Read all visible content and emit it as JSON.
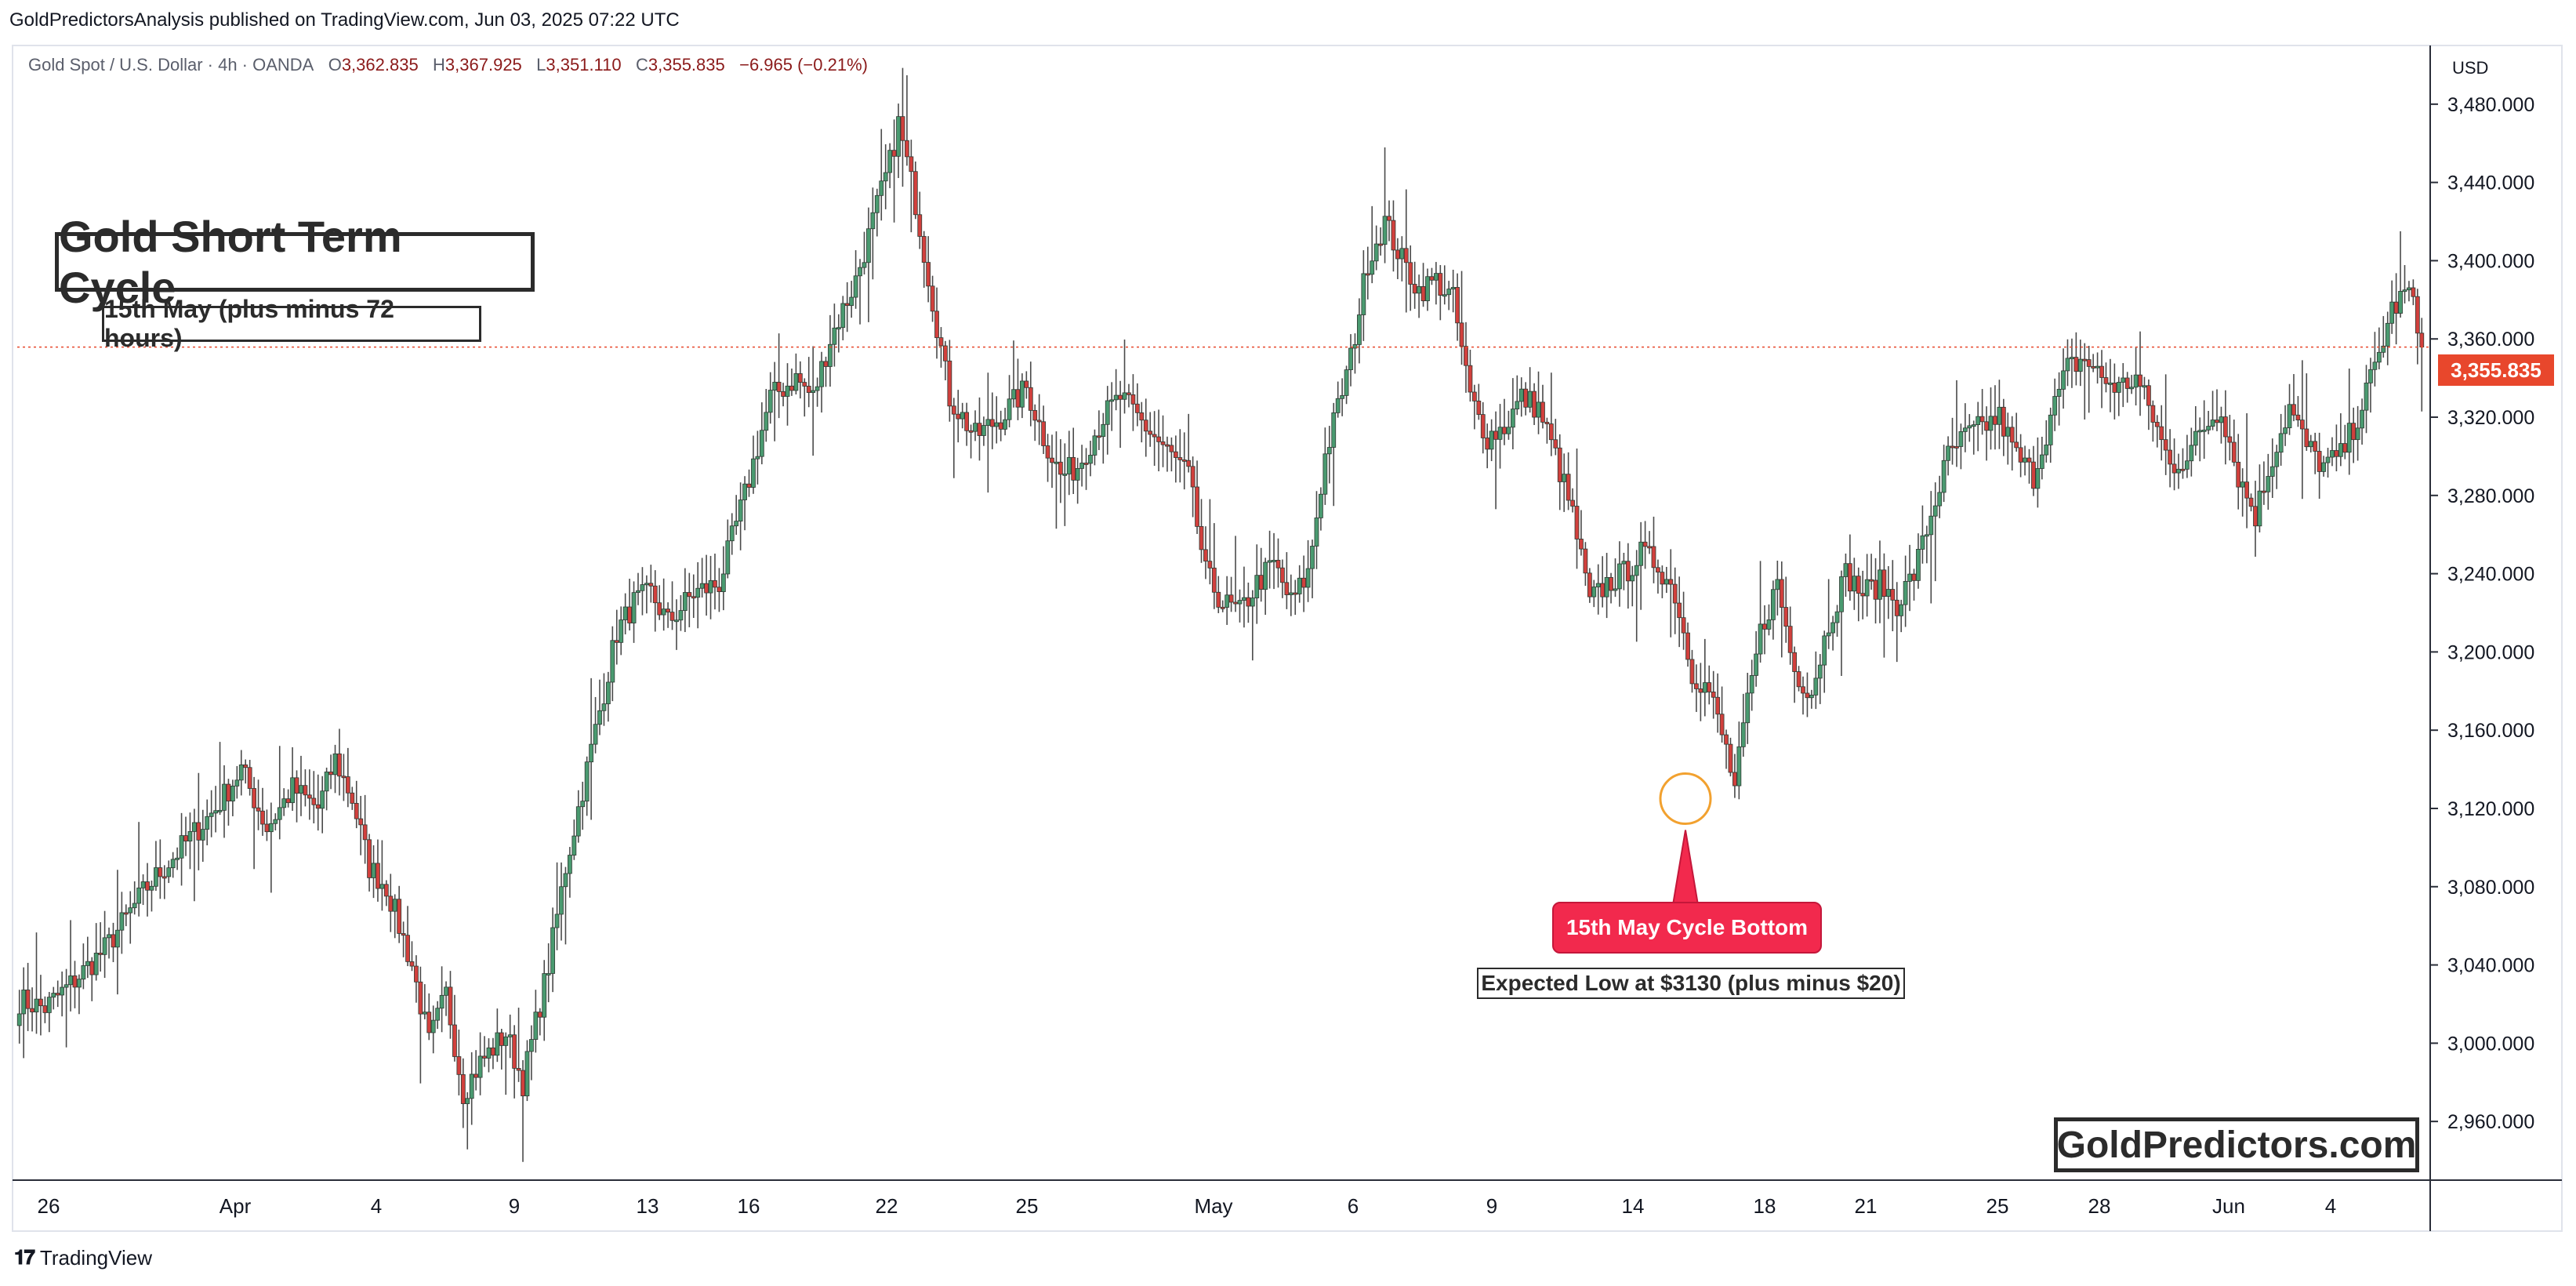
{
  "header": {
    "publisher_line": "GoldPredictorsAnalysis published on TradingView.com, Jun 03, 2025 07:22 UTC"
  },
  "legend": {
    "symbol": "Gold Spot / U.S. Dollar · 4h · OANDA",
    "open_label": "O",
    "open": "3,362.835",
    "high_label": "H",
    "high": "3,367.925",
    "low_label": "L",
    "low": "3,351.110",
    "close_label": "C",
    "close": "3,355.835",
    "change": "−6.965 (−0.21%)"
  },
  "annotations": {
    "title": "Gold Short Term Cycle",
    "subtitle": "15th May (plus minus 72 hours)",
    "cycle_bottom_label": "15th May Cycle Bottom",
    "expected_low": "Expected Low at $3130 (plus minus $20)",
    "brand": "GoldPredictors.com"
  },
  "axis": {
    "currency": "USD",
    "current_price": "3,355.835"
  },
  "footer": {
    "logo_glyph": "𝟏𝟕",
    "name": "TradingView"
  },
  "colors": {
    "up": "#4a9a70",
    "down": "#d1403d",
    "wick": "#4a4a4a",
    "price_line": "#e8472c",
    "highlight_circle": "#f2a12f",
    "callout": "#f2294d"
  },
  "chart_data": {
    "type": "candlestick",
    "title": "Gold Short Term Cycle",
    "xlabel": "",
    "ylabel": "",
    "ylim": [
      2930,
      3510
    ],
    "y_ticks": [
      2960,
      3000,
      3040,
      3080,
      3120,
      3160,
      3200,
      3240,
      3280,
      3320,
      3360,
      3400,
      3440,
      3480
    ],
    "y_tick_labels": [
      "2,960.000",
      "3,000.000",
      "3,040.000",
      "3,080.000",
      "3,120.000",
      "3,160.000",
      "3,200.000",
      "3,240.000",
      "3,280.000",
      "3,320.000",
      "3,360.000",
      "3,400.000",
      "3,440.000",
      "3,480.000"
    ],
    "x_tick_labels": [
      "26",
      "Apr",
      "4",
      "9",
      "13",
      "16",
      "22",
      "25",
      "May",
      "6",
      "9",
      "14",
      "18",
      "21",
      "25",
      "28",
      "Jun",
      "4"
    ],
    "current_price": 3355.835,
    "cycle_bottom_marker": {
      "label": "15th May Cycle Bottom",
      "price": 3125
    },
    "anchors": [
      [
        0,
        3022
      ],
      [
        6,
        3018
      ],
      [
        12,
        3030
      ],
      [
        20,
        3048
      ],
      [
        30,
        3080
      ],
      [
        40,
        3105
      ],
      [
        46,
        3120
      ],
      [
        52,
        3140
      ],
      [
        58,
        3110
      ],
      [
        64,
        3130
      ],
      [
        70,
        3120
      ],
      [
        74,
        3145
      ],
      [
        78,
        3125
      ],
      [
        82,
        3090
      ],
      [
        86,
        3080
      ],
      [
        92,
        3040
      ],
      [
        96,
        3000
      ],
      [
        100,
        3025
      ],
      [
        104,
        2975
      ],
      [
        108,
        2990
      ],
      [
        114,
        3005
      ],
      [
        118,
        2980
      ],
      [
        124,
        3040
      ],
      [
        128,
        3090
      ],
      [
        132,
        3130
      ],
      [
        136,
        3170
      ],
      [
        140,
        3210
      ],
      [
        144,
        3225
      ],
      [
        148,
        3230
      ],
      [
        152,
        3215
      ],
      [
        158,
        3230
      ],
      [
        164,
        3235
      ],
      [
        170,
        3280
      ],
      [
        176,
        3330
      ],
      [
        182,
        3340
      ],
      [
        186,
        3330
      ],
      [
        190,
        3360
      ],
      [
        196,
        3390
      ],
      [
        200,
        3420
      ],
      [
        204,
        3450
      ],
      [
        206,
        3470
      ],
      [
        210,
        3430
      ],
      [
        214,
        3380
      ],
      [
        218,
        3330
      ],
      [
        224,
        3310
      ],
      [
        230,
        3320
      ],
      [
        236,
        3335
      ],
      [
        240,
        3310
      ],
      [
        244,
        3290
      ],
      [
        248,
        3295
      ],
      [
        254,
        3320
      ],
      [
        258,
        3330
      ],
      [
        262,
        3320
      ],
      [
        266,
        3310
      ],
      [
        270,
        3300
      ],
      [
        274,
        3290
      ],
      [
        278,
        3240
      ],
      [
        282,
        3225
      ],
      [
        286,
        3220
      ],
      [
        290,
        3235
      ],
      [
        294,
        3245
      ],
      [
        298,
        3225
      ],
      [
        302,
        3240
      ],
      [
        306,
        3300
      ],
      [
        312,
        3350
      ],
      [
        316,
        3400
      ],
      [
        320,
        3420
      ],
      [
        324,
        3400
      ],
      [
        328,
        3385
      ],
      [
        332,
        3390
      ],
      [
        336,
        3380
      ],
      [
        340,
        3330
      ],
      [
        344,
        3310
      ],
      [
        348,
        3315
      ],
      [
        352,
        3330
      ],
      [
        356,
        3325
      ],
      [
        360,
        3300
      ],
      [
        364,
        3270
      ],
      [
        368,
        3225
      ],
      [
        372,
        3235
      ],
      [
        376,
        3240
      ],
      [
        380,
        3250
      ],
      [
        384,
        3245
      ],
      [
        388,
        3230
      ],
      [
        392,
        3190
      ],
      [
        396,
        3180
      ],
      [
        400,
        3150
      ],
      [
        402,
        3130
      ],
      [
        404,
        3160
      ],
      [
        408,
        3210
      ],
      [
        412,
        3235
      ],
      [
        416,
        3190
      ],
      [
        420,
        3180
      ],
      [
        424,
        3215
      ],
      [
        428,
        3240
      ],
      [
        432,
        3230
      ],
      [
        436,
        3235
      ],
      [
        440,
        3225
      ],
      [
        444,
        3240
      ],
      [
        448,
        3270
      ],
      [
        452,
        3300
      ],
      [
        456,
        3310
      ],
      [
        460,
        3315
      ],
      [
        464,
        3320
      ],
      [
        468,
        3300
      ],
      [
        472,
        3290
      ],
      [
        476,
        3320
      ],
      [
        480,
        3345
      ],
      [
        484,
        3350
      ],
      [
        488,
        3340
      ],
      [
        492,
        3335
      ],
      [
        496,
        3340
      ],
      [
        500,
        3320
      ],
      [
        504,
        3295
      ],
      [
        508,
        3300
      ],
      [
        512,
        3315
      ],
      [
        516,
        3325
      ],
      [
        520,
        3290
      ],
      [
        524,
        3270
      ],
      [
        528,
        3300
      ],
      [
        532,
        3325
      ],
      [
        536,
        3305
      ],
      [
        540,
        3295
      ],
      [
        544,
        3300
      ],
      [
        548,
        3320
      ],
      [
        552,
        3345
      ],
      [
        556,
        3375
      ],
      [
        560,
        3385
      ],
      [
        563,
        3356
      ]
    ]
  }
}
